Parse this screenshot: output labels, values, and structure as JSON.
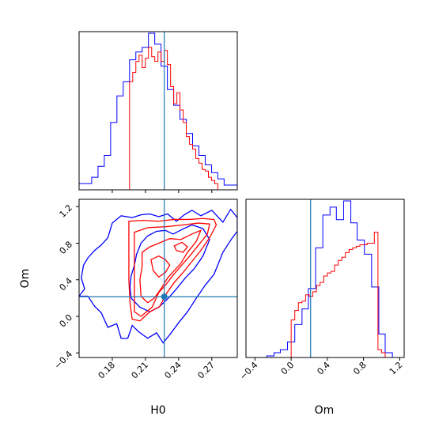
{
  "chart_data": [
    {
      "type": "histogram",
      "panel": "H0 marginal",
      "x_range": [
        0.15,
        0.293
      ],
      "true_value_line": 0.227,
      "colors": {
        "a": "#0000ff",
        "b": "#ff0000",
        "truth": "#1f77b4"
      },
      "series": [
        {
          "name": "",
          "color": "#0000ff",
          "bin_edges": [
            0.15,
            0.1557,
            0.1614,
            0.1671,
            0.1728,
            0.1785,
            0.1842,
            0.1899,
            0.1956,
            0.2013,
            0.207,
            0.2127,
            0.2184,
            0.2241,
            0.2298,
            0.2355,
            0.2412,
            0.2469,
            0.2526,
            0.2583,
            0.264,
            0.2697,
            0.2754,
            0.2811,
            0.2868,
            0.293
          ],
          "counts": [
            0.04,
            0.04,
            0.08,
            0.15,
            0.22,
            0.43,
            0.6,
            0.69,
            0.83,
            0.88,
            0.91,
            1.0,
            0.93,
            0.79,
            0.64,
            0.54,
            0.45,
            0.36,
            0.28,
            0.22,
            0.16,
            0.11,
            0.07,
            0.03,
            0.03
          ]
        },
        {
          "name": "",
          "color": "#ff0000",
          "bin_edges": [
            0.1956,
            0.1985,
            0.2013,
            0.2042,
            0.207,
            0.2099,
            0.2127,
            0.2156,
            0.2184,
            0.2213,
            0.2241,
            0.227,
            0.2298,
            0.2327,
            0.2355,
            0.2384,
            0.2412,
            0.2441,
            0.2469,
            0.2498,
            0.2526,
            0.2555,
            0.2583,
            0.2612,
            0.264,
            0.2669,
            0.2697,
            0.2726,
            0.2754,
            0.2782
          ],
          "counts": [
            0.69,
            0.75,
            0.82,
            0.86,
            0.78,
            0.84,
            0.91,
            0.85,
            0.82,
            0.88,
            0.82,
            0.89,
            0.8,
            0.66,
            0.55,
            0.62,
            0.51,
            0.43,
            0.34,
            0.29,
            0.26,
            0.2,
            0.17,
            0.13,
            0.12,
            0.08,
            0.06,
            0.04,
            0.0
          ]
        }
      ]
    },
    {
      "type": "contour",
      "panel": "H0 vs Om",
      "xlabel": "H0",
      "ylabel": "Om",
      "x_range": [
        0.15,
        0.293
      ],
      "y_range": [
        -0.45,
        1.28
      ],
      "x_ticks": [
        0.18,
        0.21,
        0.24,
        0.27
      ],
      "x_tick_labels": [
        "0.18",
        "0.21",
        "0.24",
        "0.27"
      ],
      "y_ticks": [
        -0.4,
        0.0,
        0.4,
        0.8,
        1.2
      ],
      "y_tick_labels": [
        "−0.4",
        "0.0",
        "0.4",
        "0.8",
        "1.2"
      ],
      "truth": {
        "H0": 0.227,
        "Om": 0.215
      },
      "contours": [
        {
          "color": "#0000ff",
          "points": [
            [
              0.15,
              0.22
            ],
            [
              0.158,
              0.22
            ],
            [
              0.164,
              0.11
            ],
            [
              0.17,
              0.04
            ],
            [
              0.176,
              -0.12
            ],
            [
              0.184,
              -0.08
            ],
            [
              0.188,
              -0.24
            ],
            [
              0.194,
              -0.24
            ],
            [
              0.198,
              -0.1
            ],
            [
              0.204,
              -0.17
            ],
            [
              0.212,
              -0.24
            ],
            [
              0.22,
              -0.18
            ],
            [
              0.226,
              -0.29
            ],
            [
              0.232,
              -0.2
            ],
            [
              0.24,
              -0.07
            ],
            [
              0.248,
              0.05
            ],
            [
              0.256,
              0.2
            ],
            [
              0.264,
              0.34
            ],
            [
              0.272,
              0.46
            ],
            [
              0.28,
              0.7
            ],
            [
              0.288,
              0.85
            ],
            [
              0.293,
              0.93
            ],
            [
              0.293,
              1.08
            ],
            [
              0.287,
              1.17
            ],
            [
              0.28,
              1.03
            ],
            [
              0.27,
              1.16
            ],
            [
              0.26,
              1.1
            ],
            [
              0.252,
              1.16
            ],
            [
              0.245,
              1.11
            ],
            [
              0.238,
              1.04
            ],
            [
              0.23,
              1.12
            ],
            [
              0.222,
              1.09
            ],
            [
              0.214,
              1.12
            ],
            [
              0.206,
              1.11
            ],
            [
              0.198,
              1.08
            ],
            [
              0.188,
              1.1
            ],
            [
              0.18,
              1.02
            ],
            [
              0.176,
              0.86
            ],
            [
              0.17,
              0.78
            ],
            [
              0.164,
              0.72
            ],
            [
              0.158,
              0.64
            ],
            [
              0.154,
              0.56
            ],
            [
              0.152,
              0.42
            ],
            [
              0.155,
              0.3
            ],
            [
              0.15,
              0.22
            ]
          ]
        },
        {
          "color": "#0000ff",
          "points": [
            [
              0.197,
              0.2
            ],
            [
              0.205,
              0.1
            ],
            [
              0.214,
              0.05
            ],
            [
              0.222,
              0.1
            ],
            [
              0.23,
              0.19
            ],
            [
              0.238,
              0.3
            ],
            [
              0.246,
              0.42
            ],
            [
              0.254,
              0.52
            ],
            [
              0.262,
              0.66
            ],
            [
              0.268,
              0.84
            ],
            [
              0.262,
              0.96
            ],
            [
              0.252,
              1.0
            ],
            [
              0.243,
              0.95
            ],
            [
              0.235,
              0.9
            ],
            [
              0.228,
              0.94
            ],
            [
              0.22,
              0.93
            ],
            [
              0.212,
              0.88
            ],
            [
              0.206,
              0.8
            ],
            [
              0.202,
              0.68
            ],
            [
              0.2,
              0.56
            ],
            [
              0.197,
              0.44
            ],
            [
              0.196,
              0.32
            ],
            [
              0.197,
              0.2
            ]
          ]
        },
        {
          "color": "#ff0000",
          "points": [
            [
              0.195,
              1.04
            ],
            [
              0.208,
              1.05
            ],
            [
              0.222,
              1.04
            ],
            [
              0.236,
              1.06
            ],
            [
              0.25,
              1.06
            ],
            [
              0.262,
              1.07
            ],
            [
              0.272,
              1.06
            ],
            [
              0.274,
              1.0
            ],
            [
              0.268,
              0.86
            ],
            [
              0.26,
              0.72
            ],
            [
              0.252,
              0.6
            ],
            [
              0.244,
              0.48
            ],
            [
              0.236,
              0.37
            ],
            [
              0.229,
              0.25
            ],
            [
              0.223,
              0.11
            ],
            [
              0.214,
              0.05
            ],
            [
              0.205,
              -0.05
            ],
            [
              0.198,
              -0.03
            ],
            [
              0.196,
              0.15
            ],
            [
              0.195,
              0.4
            ],
            [
              0.195,
              0.7
            ],
            [
              0.195,
              1.04
            ]
          ]
        },
        {
          "color": "#ff0000",
          "points": [
            [
              0.2,
              0.92
            ],
            [
              0.212,
              0.97
            ],
            [
              0.228,
              0.98
            ],
            [
              0.244,
              1.0
            ],
            [
              0.258,
              1.02
            ],
            [
              0.268,
              1.01
            ],
            [
              0.266,
              0.9
            ],
            [
              0.258,
              0.78
            ],
            [
              0.25,
              0.66
            ],
            [
              0.242,
              0.55
            ],
            [
              0.235,
              0.45
            ],
            [
              0.228,
              0.34
            ],
            [
              0.222,
              0.26
            ],
            [
              0.216,
              0.1
            ],
            [
              0.206,
              0.0
            ],
            [
              0.2,
              0.05
            ],
            [
              0.2,
              0.3
            ],
            [
              0.2,
              0.6
            ],
            [
              0.2,
              0.92
            ]
          ]
        },
        {
          "color": "#ff0000",
          "points": [
            [
              0.207,
              0.7
            ],
            [
              0.214,
              0.76
            ],
            [
              0.222,
              0.8
            ],
            [
              0.232,
              0.85
            ],
            [
              0.242,
              0.84
            ],
            [
              0.252,
              0.9
            ],
            [
              0.26,
              0.94
            ],
            [
              0.256,
              0.82
            ],
            [
              0.248,
              0.7
            ],
            [
              0.242,
              0.58
            ],
            [
              0.236,
              0.5
            ],
            [
              0.23,
              0.42
            ],
            [
              0.224,
              0.3
            ],
            [
              0.218,
              0.2
            ],
            [
              0.212,
              0.15
            ],
            [
              0.206,
              0.22
            ],
            [
              0.205,
              0.4
            ],
            [
              0.207,
              0.55
            ],
            [
              0.207,
              0.7
            ]
          ]
        },
        {
          "color": "#ff0000",
          "points": [
            [
              0.215,
              0.62
            ],
            [
              0.222,
              0.66
            ],
            [
              0.228,
              0.62
            ],
            [
              0.232,
              0.56
            ],
            [
              0.228,
              0.48
            ],
            [
              0.222,
              0.43
            ],
            [
              0.217,
              0.5
            ],
            [
              0.215,
              0.62
            ]
          ]
        },
        {
          "color": "#ff0000",
          "points": [
            [
              0.236,
              0.77
            ],
            [
              0.243,
              0.81
            ],
            [
              0.248,
              0.76
            ],
            [
              0.244,
              0.7
            ],
            [
              0.238,
              0.72
            ],
            [
              0.236,
              0.77
            ]
          ]
        }
      ]
    },
    {
      "type": "histogram",
      "panel": "Om marginal",
      "xlabel": "Om",
      "x_range": [
        -0.5,
        1.25
      ],
      "x_ticks": [
        -0.4,
        0.0,
        0.4,
        0.8,
        1.2
      ],
      "x_tick_labels": [
        "−0.4",
        "0.0",
        "0.4",
        "0.8",
        "1.2"
      ],
      "true_value_line": 0.215,
      "series": [
        {
          "name": "",
          "color": "#0000ff",
          "bin_edges": [
            -0.5,
            -0.42,
            -0.35,
            -0.27,
            -0.19,
            -0.12,
            -0.04,
            0.04,
            0.12,
            0.19,
            0.27,
            0.35,
            0.43,
            0.5,
            0.58,
            0.66,
            0.73,
            0.81,
            0.89,
            0.97,
            1.04,
            1.12,
            1.2
          ],
          "counts": [
            0.0,
            0.0,
            0.0,
            0.01,
            0.03,
            0.05,
            0.1,
            0.21,
            0.31,
            0.44,
            0.7,
            0.91,
            0.96,
            0.88,
            1.0,
            0.86,
            0.75,
            0.66,
            0.45,
            0.15,
            0.03,
            0.0
          ]
        },
        {
          "name": "",
          "color": "#ff0000",
          "bin_edges": [
            0.0,
            0.04,
            0.08,
            0.12,
            0.16,
            0.2,
            0.24,
            0.28,
            0.32,
            0.36,
            0.4,
            0.44,
            0.48,
            0.52,
            0.56,
            0.6,
            0.64,
            0.68,
            0.72,
            0.76,
            0.8,
            0.84,
            0.88,
            0.92,
            0.96,
            1.0,
            1.04,
            1.08
          ],
          "counts": [
            0.24,
            0.3,
            0.35,
            0.36,
            0.4,
            0.39,
            0.42,
            0.46,
            0.48,
            0.52,
            0.54,
            0.55,
            0.59,
            0.62,
            0.64,
            0.67,
            0.69,
            0.7,
            0.71,
            0.72,
            0.72,
            0.73,
            0.73,
            0.8,
            0.05,
            0.03,
            0.0
          ]
        }
      ]
    }
  ]
}
